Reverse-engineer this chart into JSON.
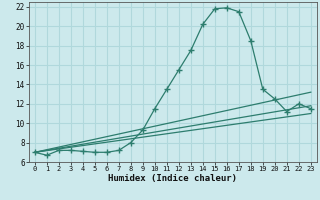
{
  "xlabel": "Humidex (Indice chaleur)",
  "bg_color": "#cce9ec",
  "grid_color": "#b0d8dc",
  "line_color": "#2d7d6e",
  "xlim": [
    -0.5,
    23.5
  ],
  "ylim": [
    6,
    22.5
  ],
  "xticks": [
    0,
    1,
    2,
    3,
    4,
    5,
    6,
    7,
    8,
    9,
    10,
    11,
    12,
    13,
    14,
    15,
    16,
    17,
    18,
    19,
    20,
    21,
    22,
    23
  ],
  "yticks": [
    6,
    8,
    10,
    12,
    14,
    16,
    18,
    20,
    22
  ],
  "main_x": [
    0,
    1,
    2,
    3,
    4,
    5,
    6,
    7,
    8,
    9,
    10,
    11,
    12,
    13,
    14,
    15,
    16,
    17,
    18,
    19,
    20,
    21,
    22,
    23
  ],
  "main_y": [
    7.0,
    6.7,
    7.2,
    7.2,
    7.1,
    7.0,
    7.0,
    7.2,
    8.0,
    9.3,
    11.5,
    13.5,
    15.5,
    17.5,
    20.2,
    21.8,
    21.9,
    21.5,
    18.5,
    13.5,
    12.5,
    11.2,
    12.0,
    11.5
  ],
  "line1_x": [
    0,
    23
  ],
  "line1_y": [
    7.0,
    13.2
  ],
  "line2_x": [
    0,
    23
  ],
  "line2_y": [
    7.0,
    11.8
  ],
  "line3_x": [
    0,
    23
  ],
  "line3_y": [
    7.0,
    11.0
  ]
}
